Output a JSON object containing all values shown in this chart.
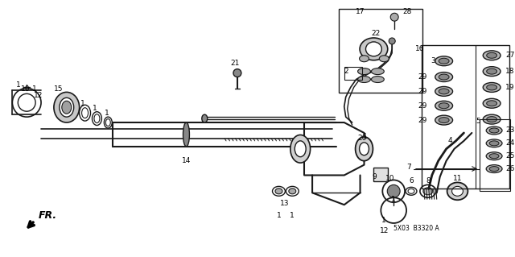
{
  "bg_color": "#ffffff",
  "fig_width": 6.4,
  "fig_height": 3.19,
  "diagram_code": "5X03  B3320 A",
  "lc": "#1a1a1a",
  "tc": "#000000",
  "fs": 6.5
}
